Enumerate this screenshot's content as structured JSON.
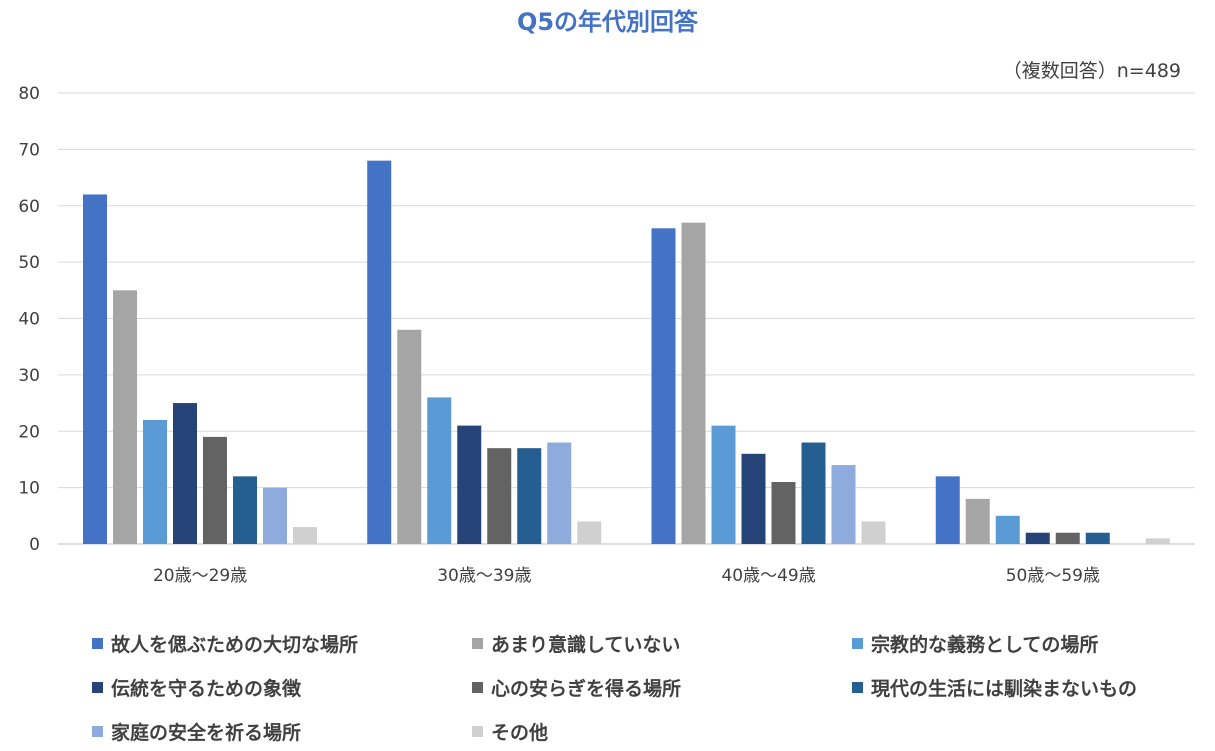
{
  "chart_data": {
    "type": "bar",
    "title": "Q5の年代別回答",
    "note": "（複数回答）n=489",
    "xlabel": "",
    "ylabel": "",
    "ylim": [
      0,
      80
    ],
    "yticks": [
      0,
      10,
      20,
      30,
      40,
      50,
      60,
      70,
      80
    ],
    "grid": true,
    "legend_position": "bottom",
    "categories": [
      "20歳〜29歳",
      "30歳〜39歳",
      "40歳〜49歳",
      "50歳〜59歳"
    ],
    "series": [
      {
        "name": "故人を偲ぶための大切な場所",
        "color": "#4472C4",
        "values": [
          62,
          68,
          56,
          12
        ]
      },
      {
        "name": "あまり意識していない",
        "color": "#A5A5A5",
        "values": [
          45,
          38,
          57,
          8
        ]
      },
      {
        "name": "宗教的な義務としての場所",
        "color": "#5B9BD5",
        "values": [
          22,
          26,
          21,
          5
        ]
      },
      {
        "name": "伝統を守るための象徴",
        "color": "#264478",
        "values": [
          25,
          21,
          16,
          2
        ]
      },
      {
        "name": "心の安らぎを得る場所",
        "color": "#636363",
        "values": [
          19,
          17,
          11,
          2
        ]
      },
      {
        "name": "現代の生活には馴染まないもの",
        "color": "#255E91",
        "values": [
          12,
          17,
          18,
          2
        ]
      },
      {
        "name": "家庭の安全を祈る場所",
        "color": "#8FAADC",
        "values": [
          10,
          18,
          14,
          0
        ]
      },
      {
        "name": "その他",
        "color": "#D0D0D0",
        "values": [
          3,
          4,
          4,
          1
        ]
      }
    ]
  }
}
